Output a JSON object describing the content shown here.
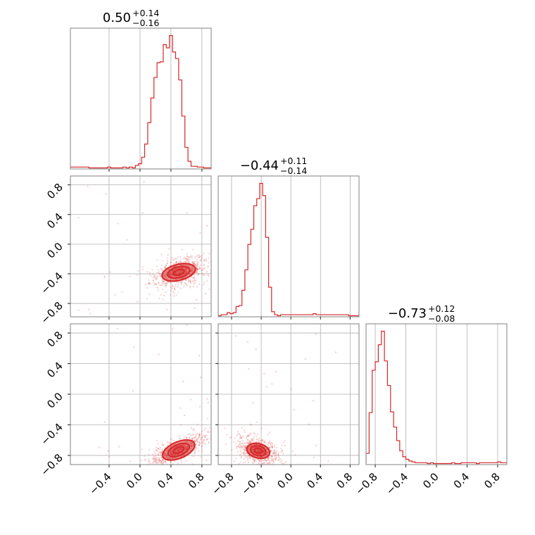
{
  "chart_data": {
    "type": "corner",
    "color": "#d62728",
    "params": [
      {
        "title_main": "0.50",
        "title_plus": "+0.14",
        "title_minus": "−0.16",
        "range": [
          -0.9,
          0.92
        ],
        "median": 0.5
      },
      {
        "title_main": "−0.44",
        "title_plus": "+0.11",
        "title_minus": "−0.14",
        "range": [
          -0.98,
          0.92
        ],
        "median": -0.44
      },
      {
        "title_main": "−0.73",
        "title_plus": "+0.12",
        "title_minus": "−0.08",
        "range": [
          -0.92,
          0.92
        ],
        "median": -0.73
      }
    ],
    "ticks": [
      {
        "values": [
          -0.4,
          0.0,
          0.4,
          0.8
        ],
        "labels": [
          "−0.4",
          "0.0",
          "0.4",
          "0.8"
        ]
      },
      {
        "values": [
          -0.8,
          -0.4,
          0.0,
          0.4,
          0.8
        ],
        "labels": [
          "−0.8",
          "−0.4",
          "0.0",
          "0.4",
          "0.8"
        ]
      },
      {
        "values": [
          -0.8,
          -0.4,
          0.0,
          0.4,
          0.8
        ],
        "labels": [
          "−0.8",
          "−0.4",
          "0.0",
          "0.4",
          "0.8"
        ]
      }
    ],
    "histograms": [
      {
        "bin_start": -0.9,
        "bin_width": 0.04,
        "counts": [
          1,
          1,
          1,
          1,
          1,
          1,
          0,
          0,
          0,
          0,
          0,
          0,
          1,
          0,
          0,
          0,
          0,
          1,
          0,
          1,
          0,
          3,
          5,
          13,
          29,
          55,
          85,
          110,
          128,
          129,
          150,
          146,
          161,
          141,
          133,
          107,
          63,
          25,
          8,
          2,
          2,
          1,
          1,
          0,
          0,
          0
        ]
      },
      {
        "bin_start": -0.98,
        "bin_width": 0.04,
        "counts": [
          0,
          1,
          1,
          3,
          2,
          3,
          9,
          10,
          25,
          45,
          70,
          85,
          108,
          115,
          130,
          118,
          77,
          28,
          4,
          1,
          0,
          1,
          1,
          1,
          1,
          1,
          1,
          1,
          1,
          1,
          1,
          1,
          2,
          1,
          1,
          1,
          1,
          1,
          1,
          1,
          1,
          1,
          1,
          1,
          0,
          0,
          0,
          0
        ]
      },
      {
        "bin_start": -0.92,
        "bin_width": 0.04,
        "counts": [
          12,
          60,
          110,
          120,
          140,
          156,
          121,
          92,
          61,
          43,
          27,
          15,
          8,
          5,
          3,
          2,
          1,
          1,
          1,
          1,
          0,
          1,
          0,
          0,
          0,
          0,
          0,
          0,
          1,
          0,
          0,
          1,
          1,
          1,
          1,
          1,
          0,
          1,
          1,
          1,
          1,
          1,
          1,
          2,
          1,
          1
        ]
      }
    ],
    "pair_contours": [
      {
        "x": 0,
        "y": 1,
        "cx": 0.5,
        "cy": -0.38,
        "sx": 0.14,
        "sy": 0.08,
        "rho": 0.45
      },
      {
        "x": 0,
        "y": 2,
        "cx": 0.5,
        "cy": -0.73,
        "sx": 0.14,
        "sy": 0.08,
        "rho": 0.75
      },
      {
        "x": 1,
        "y": 2,
        "cx": -0.44,
        "cy": -0.74,
        "sx": 0.1,
        "sy": 0.07,
        "rho": -0.35
      }
    ],
    "contour_levels": [
      0.5,
      1.0,
      1.5
    ]
  }
}
